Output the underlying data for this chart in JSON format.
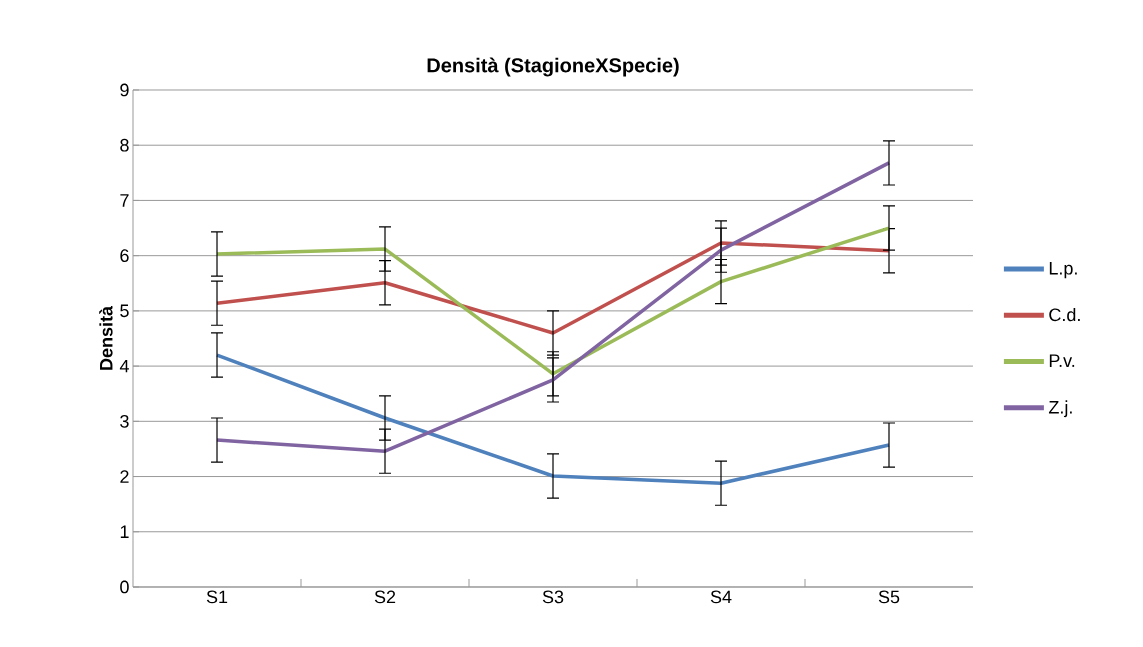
{
  "chart_data": {
    "type": "line",
    "title": "Densità (StagioneXSpecie)",
    "ylabel": "Densità",
    "categories": [
      "S1",
      "S2",
      "S3",
      "S4",
      "S5"
    ],
    "series": [
      {
        "name": "L.p.",
        "color": "#4f81bd",
        "values": [
          4.2,
          3.06,
          2.01,
          1.88,
          2.57
        ],
        "errors": [
          0.4,
          0.4,
          0.4,
          0.4,
          0.4
        ]
      },
      {
        "name": "C.d.",
        "color": "#c0504d",
        "values": [
          5.14,
          5.51,
          4.6,
          6.23,
          6.09
        ],
        "errors": [
          0.4,
          0.4,
          0.4,
          0.4,
          0.4
        ]
      },
      {
        "name": "P.v.",
        "color": "#9bbb59",
        "values": [
          6.03,
          6.12,
          3.86,
          5.53,
          6.5
        ],
        "errors": [
          0.4,
          0.4,
          0.4,
          0.4,
          0.4
        ]
      },
      {
        "name": "Z.j.",
        "color": "#8064a2",
        "values": [
          2.66,
          2.46,
          3.75,
          6.1,
          7.68
        ],
        "errors": [
          0.4,
          0.4,
          0.4,
          0.4,
          0.4
        ]
      }
    ],
    "ylim": [
      0,
      9
    ],
    "yticks": [
      0,
      1,
      2,
      3,
      4,
      5,
      6,
      7,
      8,
      9
    ],
    "grid": "y",
    "legend": "right",
    "marker": "none",
    "line_style": "solid"
  }
}
